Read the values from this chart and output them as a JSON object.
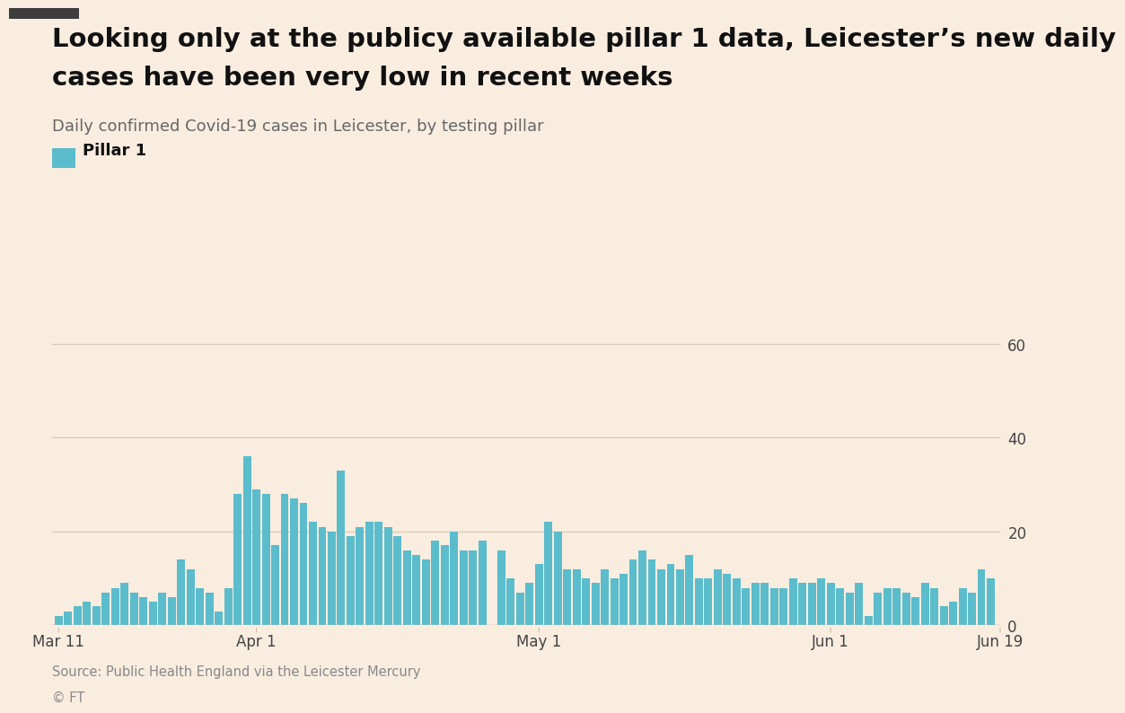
{
  "title_line1": "Looking only at the publicy available pillar 1 data, Leicester’s new daily",
  "title_line2": "cases have been very low in recent weeks",
  "subtitle": "Daily confirmed Covid-19 cases in Leicester, by testing pillar",
  "legend_label": "Pillar 1",
  "bar_color": "#5bbccc",
  "background_color": "#f9ede0",
  "source": "Source: Public Health England via the Leicester Mercury",
  "copyright": "© FT",
  "ylim": [
    0,
    65
  ],
  "yticks": [
    0,
    20,
    40,
    60
  ],
  "values": [
    2,
    3,
    4,
    5,
    4,
    7,
    8,
    9,
    7,
    6,
    5,
    7,
    6,
    14,
    12,
    8,
    7,
    3,
    8,
    28,
    36,
    29,
    28,
    17,
    28,
    27,
    26,
    22,
    21,
    20,
    33,
    19,
    21,
    22,
    22,
    21,
    19,
    16,
    15,
    14,
    18,
    17,
    20,
    16,
    16,
    18,
    0,
    16,
    10,
    7,
    9,
    13,
    22,
    20,
    12,
    12,
    10,
    9,
    12,
    10,
    11,
    14,
    16,
    14,
    12,
    13,
    12,
    15,
    10,
    10,
    12,
    11,
    10,
    8,
    9,
    9,
    8,
    8,
    10,
    9,
    9,
    10,
    9,
    8,
    7,
    9,
    2,
    7,
    8,
    8,
    7,
    6,
    9,
    8,
    4,
    5,
    8,
    7,
    12,
    10
  ],
  "x_tick_positions": [
    0,
    21,
    51,
    82,
    100
  ],
  "x_tick_labels": [
    "Mar 11",
    "Apr 1",
    "May 1",
    "Jun 1",
    "Jun 19"
  ],
  "top_bar_color": "#3d3d3d",
  "grid_color": "#d8c8b8",
  "spine_color": "#ccbbaa",
  "tick_label_color": "#444444",
  "title_color": "#111111",
  "subtitle_color": "#666666",
  "source_color": "#888888"
}
